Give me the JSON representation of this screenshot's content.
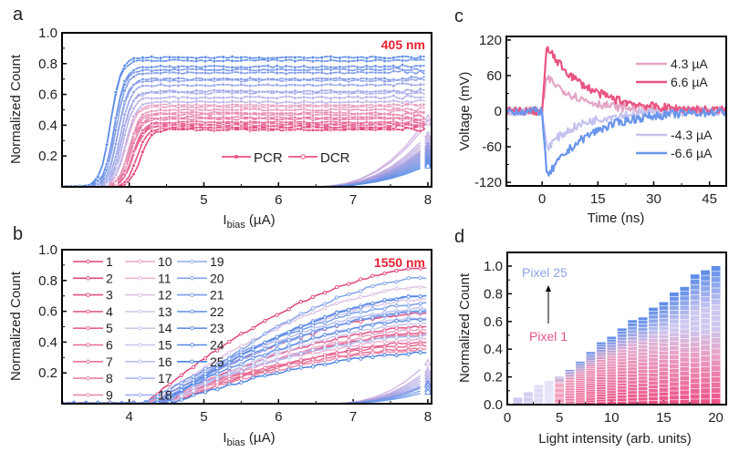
{
  "chart_data": [
    {
      "panel": "a",
      "type": "line",
      "title": "",
      "annotation": "405 nm",
      "xlabel": "I",
      "xlabel_sub": "bias",
      "xlabel_unit": " (µA)",
      "ylabel": "Normalized Count",
      "xlim": [
        3.1,
        8.05
      ],
      "ylim": [
        0,
        1.0
      ],
      "xticks": [
        "4",
        "5",
        "6",
        "7",
        "8"
      ],
      "xtick_values": [
        4,
        5,
        6,
        7,
        8
      ],
      "yticks": [
        "0.2",
        "0.4",
        "0.6",
        "0.8",
        "1.0"
      ],
      "ytick_values": [
        0.2,
        0.4,
        0.6,
        0.8,
        1.0
      ],
      "legend": [
        "PCR",
        "DCR"
      ],
      "legend_position": "bottom-center",
      "pcr_plateaus": [
        0.84,
        0.82,
        0.78,
        0.76,
        0.74,
        0.7,
        0.69,
        0.66,
        0.62,
        0.61,
        0.58,
        0.55,
        0.53,
        0.52,
        0.5,
        0.48,
        0.47,
        0.45,
        0.44,
        0.42,
        0.41,
        0.4,
        0.39,
        0.38,
        0.37
      ],
      "pcr_turn_on": [
        3.75,
        3.75,
        3.8,
        3.8,
        3.82,
        3.85,
        3.85,
        3.88,
        3.9,
        3.9,
        3.92,
        3.95,
        3.95,
        3.95,
        4.0,
        4.0,
        4.0,
        4.0,
        4.02,
        4.05,
        4.05,
        4.05,
        4.05,
        4.1,
        4.15
      ],
      "dcr_at_8": [
        0.45,
        0.42,
        0.34,
        0.32,
        0.3,
        0.28,
        0.27,
        0.26,
        0.25,
        0.24,
        0.23,
        0.22,
        0.21,
        0.2,
        0.19,
        0.18,
        0.17,
        0.16,
        0.15,
        0.14
      ],
      "dcr_onset": 6.4
    },
    {
      "panel": "b",
      "type": "line",
      "annotation": "1550 nm",
      "xlabel": "I",
      "xlabel_sub": "bias",
      "xlabel_unit": " (µA)",
      "ylabel": "Normalized Count",
      "xlim": [
        3.1,
        8.05
      ],
      "ylim": [
        0,
        1.0
      ],
      "xticks": [
        "4",
        "5",
        "6",
        "7",
        "8"
      ],
      "xtick_values": [
        4,
        5,
        6,
        7,
        8
      ],
      "yticks": [
        "0.2",
        "0.4",
        "0.6",
        "0.8",
        "1.0"
      ],
      "ytick_values": [
        0.2,
        0.4,
        0.6,
        0.8,
        1.0
      ],
      "legend_position": "top-left",
      "series": [
        {
          "name": "1",
          "end": 0.88,
          "color": "#e0457b"
        },
        {
          "name": "2",
          "end": 0.59,
          "color": "#e04a7e"
        },
        {
          "name": "3",
          "end": 0.5,
          "color": "#e25283"
        },
        {
          "name": "4",
          "end": 0.46,
          "color": "#e35a88"
        },
        {
          "name": "5",
          "end": 0.4,
          "color": "#e4628d"
        },
        {
          "name": "6",
          "end": 0.38,
          "color": "#e66b93"
        },
        {
          "name": "7",
          "end": 0.36,
          "color": "#e87598"
        },
        {
          "name": "8",
          "end": 0.45,
          "color": "#ea80a0"
        },
        {
          "name": "9",
          "end": 0.35,
          "color": "#ec8cab"
        },
        {
          "name": "10",
          "end": 0.48,
          "color": "#e8a4c6"
        },
        {
          "name": "11",
          "end": 0.42,
          "color": "#ebb4d5"
        },
        {
          "name": "12",
          "end": 0.76,
          "color": "#dcc1e3"
        },
        {
          "name": "13",
          "end": 0.68,
          "color": "#d8c8ea"
        },
        {
          "name": "14",
          "end": 0.52,
          "color": "#cfc6ec"
        },
        {
          "name": "15",
          "end": 0.56,
          "color": "#c5c4ee"
        },
        {
          "name": "16",
          "end": 0.62,
          "color": "#b9bff0"
        },
        {
          "name": "17",
          "end": 0.44,
          "color": "#aab8f0"
        },
        {
          "name": "18",
          "end": 0.6,
          "color": "#9db1ef"
        },
        {
          "name": "19",
          "end": 0.7,
          "color": "#91aaee"
        },
        {
          "name": "20",
          "end": 0.82,
          "color": "#84a3ec"
        },
        {
          "name": "21",
          "end": 0.65,
          "color": "#779dea"
        },
        {
          "name": "22",
          "end": 0.6,
          "color": "#6b96e8"
        },
        {
          "name": "23",
          "end": 0.55,
          "color": "#5f8fe6"
        },
        {
          "name": "24",
          "end": 0.7,
          "color": "#5489e4"
        },
        {
          "name": "25",
          "end": 0.33,
          "color": "#4a83e2"
        }
      ],
      "dcr_at_8": [
        0.27,
        0.22,
        0.2,
        0.18,
        0.16,
        0.14,
        0.13,
        0.12,
        0.1,
        0.08
      ],
      "dcr_onset": 6.6
    },
    {
      "panel": "c",
      "type": "line",
      "xlabel": "Time (ns)",
      "ylabel": "Voltage (mV)",
      "xlim": [
        -9.6,
        49.5
      ],
      "ylim": [
        -126,
        126
      ],
      "xticks": [
        "0",
        "15",
        "30",
        "45"
      ],
      "xtick_values": [
        0,
        15,
        30,
        45
      ],
      "yticks": [
        "-120",
        "-60",
        "0",
        "60",
        "120"
      ],
      "ytick_values": [
        -120,
        -60,
        0,
        60,
        120
      ],
      "legend_position": "right",
      "series": [
        {
          "name": "4.3 µA",
          "peak": 58,
          "tau": 9,
          "color": "#e4a6c6"
        },
        {
          "name": "6.6 µA",
          "peak": 108,
          "tau": 11,
          "color": "#e9537f"
        },
        {
          "name": "-4.3 µA",
          "peak": -62,
          "tau": 9,
          "color": "#c4c3ef"
        },
        {
          "name": "-6.6 µA",
          "peak": -112,
          "tau": 11,
          "color": "#6a95ec"
        }
      ]
    },
    {
      "panel": "d",
      "type": "bar",
      "xlabel": "Light intensity (arb. units)",
      "ylabel": "Normalized Count",
      "xlim": [
        0,
        21
      ],
      "ylim": [
        0,
        1.1
      ],
      "xticks": [
        "0",
        "5",
        "10",
        "15",
        "20"
      ],
      "xtick_values": [
        0,
        5,
        10,
        15,
        20
      ],
      "yticks": [
        "0.0",
        "0.2",
        "0.4",
        "0.6",
        "0.8",
        "1.0"
      ],
      "ytick_values": [
        0.0,
        0.2,
        0.4,
        0.6,
        0.8,
        1.0
      ],
      "categories": [
        1,
        2,
        3,
        4,
        5,
        6,
        7,
        8,
        9,
        10,
        11,
        12,
        13,
        14,
        15,
        16,
        17,
        18,
        19,
        20
      ],
      "values": [
        0.05,
        0.09,
        0.14,
        0.17,
        0.2,
        0.25,
        0.31,
        0.38,
        0.45,
        0.49,
        0.55,
        0.61,
        0.63,
        0.7,
        0.74,
        0.81,
        0.85,
        0.94,
        0.97,
        1.0
      ],
      "stacks": 25,
      "annotations": [
        "Pixel 25",
        "Pixel 1"
      ]
    }
  ],
  "panels": {
    "a": {
      "label": "a"
    },
    "b": {
      "label": "b"
    },
    "c": {
      "label": "c"
    },
    "d": {
      "label": "d"
    }
  },
  "colors": {
    "annotation_red": "#e8202f",
    "pink": "#e9537f",
    "blue": "#6a95ec",
    "pixel25": "#8aa6e6",
    "pixel1": "#e8558a"
  }
}
